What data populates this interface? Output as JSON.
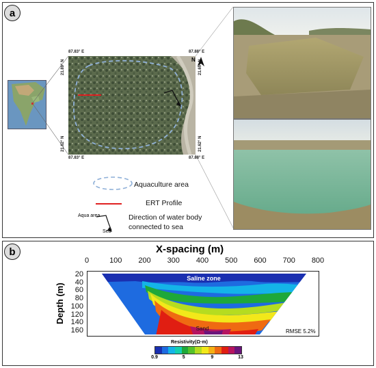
{
  "panel_a": {
    "label": "a",
    "coords": {
      "top_left": "87.83° E",
      "top_right": "87.88° E",
      "bottom_left": "87.83° E",
      "bottom_right": "87.88° E",
      "left_top": "21.89° N",
      "left_bottom": "21.62° N",
      "right_top": "21.65° N",
      "right_bottom": "21.62° N"
    },
    "north_label": "N",
    "legend": {
      "aquaculture": "Aquaculture area",
      "ert": "ERT Profile",
      "direction_line1": "Direction of water body",
      "direction_line2": "connected to sea",
      "aqua_area": "Aqua area",
      "sea": "Sea"
    },
    "colors": {
      "aquaculture_outline": "#8fb0d8",
      "ert_line": "#e02020"
    }
  },
  "panel_b": {
    "label": "b",
    "chart_data": {
      "type": "heatmap",
      "xlabel": "X-spacing (m)",
      "ylabel": "Depth (m)",
      "x_ticks": [
        "0",
        "100",
        "200",
        "300",
        "400",
        "500",
        "600",
        "700",
        "800"
      ],
      "y_ticks": [
        "20",
        "40",
        "60",
        "80",
        "100",
        "120",
        "140",
        "160"
      ],
      "xlim": [
        0,
        800
      ],
      "ylim": [
        10,
        170
      ],
      "annotations": [
        "Saline zone",
        "Sand"
      ],
      "rmse": "RMSE 5.2%",
      "colorbar": {
        "title": "Resistivity(Ω·m)",
        "ticks": [
          "0.9",
          "5",
          "9",
          "13"
        ],
        "colors": [
          "#1a2fb0",
          "#1e6be0",
          "#14b4e8",
          "#13d0b0",
          "#1ea83a",
          "#55c22a",
          "#b5dc20",
          "#f2e81a",
          "#f5b014",
          "#ef6a12",
          "#e01e12",
          "#b51460",
          "#6a147a"
        ]
      }
    }
  }
}
